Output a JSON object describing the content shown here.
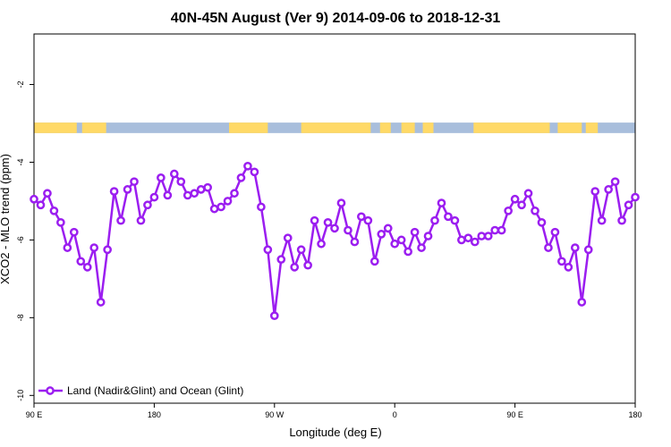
{
  "chart_data": {
    "type": "line",
    "title": "40N-45N August (Ver 9)   2014-09-06 to 2018-12-31",
    "xlabel": "Longitude (deg E)",
    "ylabel": "XCO2 - MLO trend (ppm)",
    "x_ticks": [
      {
        "value": 90,
        "label": "90 E"
      },
      {
        "value": 180,
        "label": "180"
      },
      {
        "value": 270,
        "label": "90 W"
      },
      {
        "value": 360,
        "label": "0"
      },
      {
        "value": 450,
        "label": "90 E"
      },
      {
        "value": 540,
        "label": "180"
      }
    ],
    "y_ticks": [
      {
        "value": -10,
        "label": "-10"
      },
      {
        "value": -8,
        "label": "-8"
      },
      {
        "value": -6,
        "label": "-6"
      },
      {
        "value": -4,
        "label": "-4"
      },
      {
        "value": -2,
        "label": "-2"
      }
    ],
    "xlim": [
      90,
      540
    ],
    "ylim": [
      -10.2,
      -0.7
    ],
    "grid": false,
    "legend_position": "bottom-left",
    "land_sea_strip": {
      "y_range": [
        -3.25,
        -2.98
      ],
      "land_color": "#ffd966",
      "ocean_color": "#a8bedc",
      "land_segments": [
        [
          90,
          122
        ],
        [
          126,
          144
        ],
        [
          236,
          265
        ],
        [
          290,
          342
        ],
        [
          349,
          357
        ],
        [
          365,
          375
        ],
        [
          381,
          389
        ],
        [
          419,
          476
        ],
        [
          482,
          500
        ],
        [
          503,
          512
        ]
      ]
    },
    "series": [
      {
        "name": "Land (Nadir&Glint) and Ocean (Glint)",
        "color": "#9b1ef0",
        "x": [
          90,
          95,
          100,
          105,
          110,
          115,
          120,
          125,
          130,
          135,
          140,
          145,
          150,
          155,
          160,
          165,
          170,
          175,
          180,
          185,
          190,
          195,
          200,
          205,
          210,
          215,
          220,
          225,
          230,
          235,
          240,
          245,
          250,
          255,
          260,
          265,
          270,
          275,
          280,
          285,
          290,
          295,
          300,
          305,
          310,
          315,
          320,
          325,
          330,
          335,
          340,
          345,
          350,
          355,
          360,
          365,
          370,
          375,
          380,
          385,
          390,
          395,
          400,
          405,
          410,
          415,
          420,
          425,
          430,
          435,
          440,
          445,
          450,
          455,
          460,
          465,
          470,
          475,
          480,
          485,
          490,
          495,
          500,
          505,
          510,
          515,
          520,
          525,
          530,
          535,
          540
        ],
        "y": [
          -4.95,
          -5.1,
          -4.8,
          -5.25,
          -5.55,
          -6.2,
          -5.8,
          -6.55,
          -6.7,
          -6.2,
          -7.6,
          -6.25,
          -4.75,
          -5.5,
          -4.7,
          -4.5,
          -5.5,
          -5.1,
          -4.9,
          -4.4,
          -4.85,
          -4.3,
          -4.5,
          -4.85,
          -4.8,
          -4.7,
          -4.65,
          -5.2,
          -5.15,
          -5.0,
          -4.8,
          -4.4,
          -4.1,
          -4.25,
          -5.15,
          -6.25,
          -7.95,
          -6.5,
          -5.95,
          -6.7,
          -6.25,
          -6.65,
          -5.5,
          -6.1,
          -5.55,
          -5.7,
          -5.05,
          -5.75,
          -6.05,
          -5.4,
          -5.5,
          -6.55,
          -5.85,
          -5.7,
          -6.1,
          -6.0,
          -6.3,
          -5.8,
          -6.2,
          -5.9,
          -5.5,
          -5.05,
          -5.4,
          -5.5,
          -6.0,
          -5.95,
          -6.05,
          -5.9,
          -5.9,
          -5.75,
          -5.75,
          -5.25,
          -4.95,
          -5.1,
          -4.8,
          -5.25,
          -5.55,
          -6.2,
          -5.8,
          -6.55,
          -6.7,
          -6.2,
          -7.6,
          -6.25,
          -4.75,
          -5.5,
          -4.7,
          -4.5,
          -5.5,
          -5.1,
          -4.9
        ]
      }
    ]
  }
}
